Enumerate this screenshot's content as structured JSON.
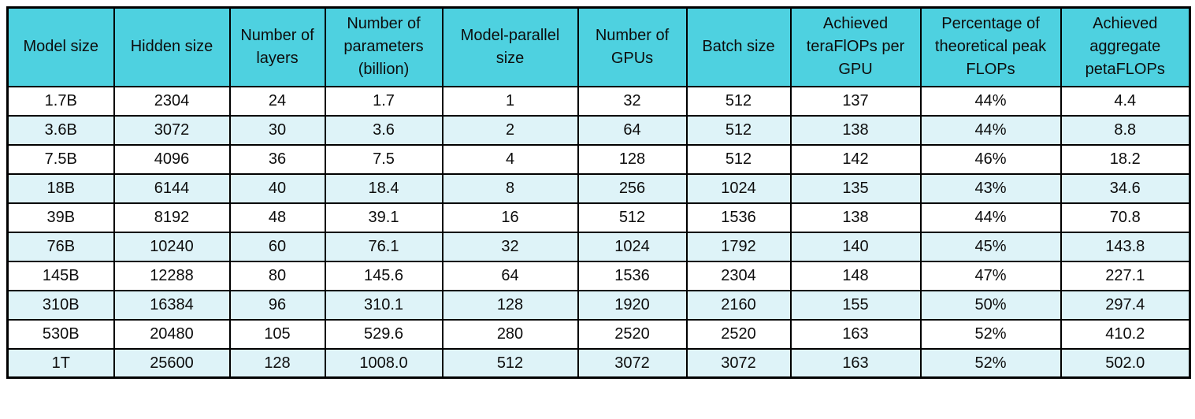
{
  "colors": {
    "header_bg": "#4ED1E0",
    "row_bg": "#FFFFFF",
    "row_alt_bg": "#DEF3F8",
    "border": "#000000",
    "text": "#0D0D0D"
  },
  "chart_data": {
    "type": "table",
    "columns": [
      "Model size",
      "Hidden size",
      "Number of layers",
      "Number of parameters (billion)",
      "Model-parallel size",
      "Number of GPUs",
      "Batch size",
      "Achieved teraFlOPs per GPU",
      "Percentage of theoretical peak FLOPs",
      "Achieved aggregate petaFLOPs"
    ],
    "rows": [
      [
        "1.7B",
        "2304",
        "24",
        "1.7",
        "1",
        "32",
        "512",
        "137",
        "44%",
        "4.4"
      ],
      [
        "3.6B",
        "3072",
        "30",
        "3.6",
        "2",
        "64",
        "512",
        "138",
        "44%",
        "8.8"
      ],
      [
        "7.5B",
        "4096",
        "36",
        "7.5",
        "4",
        "128",
        "512",
        "142",
        "46%",
        "18.2"
      ],
      [
        "18B",
        "6144",
        "40",
        "18.4",
        "8",
        "256",
        "1024",
        "135",
        "43%",
        "34.6"
      ],
      [
        "39B",
        "8192",
        "48",
        "39.1",
        "16",
        "512",
        "1536",
        "138",
        "44%",
        "70.8"
      ],
      [
        "76B",
        "10240",
        "60",
        "76.1",
        "32",
        "1024",
        "1792",
        "140",
        "45%",
        "143.8"
      ],
      [
        "145B",
        "12288",
        "80",
        "145.6",
        "64",
        "1536",
        "2304",
        "148",
        "47%",
        "227.1"
      ],
      [
        "310B",
        "16384",
        "96",
        "310.1",
        "128",
        "1920",
        "2160",
        "155",
        "50%",
        "297.4"
      ],
      [
        "530B",
        "20480",
        "105",
        "529.6",
        "280",
        "2520",
        "2520",
        "163",
        "52%",
        "410.2"
      ],
      [
        "1T",
        "25600",
        "128",
        "1008.0",
        "512",
        "3072",
        "3072",
        "163",
        "52%",
        "502.0"
      ]
    ]
  }
}
